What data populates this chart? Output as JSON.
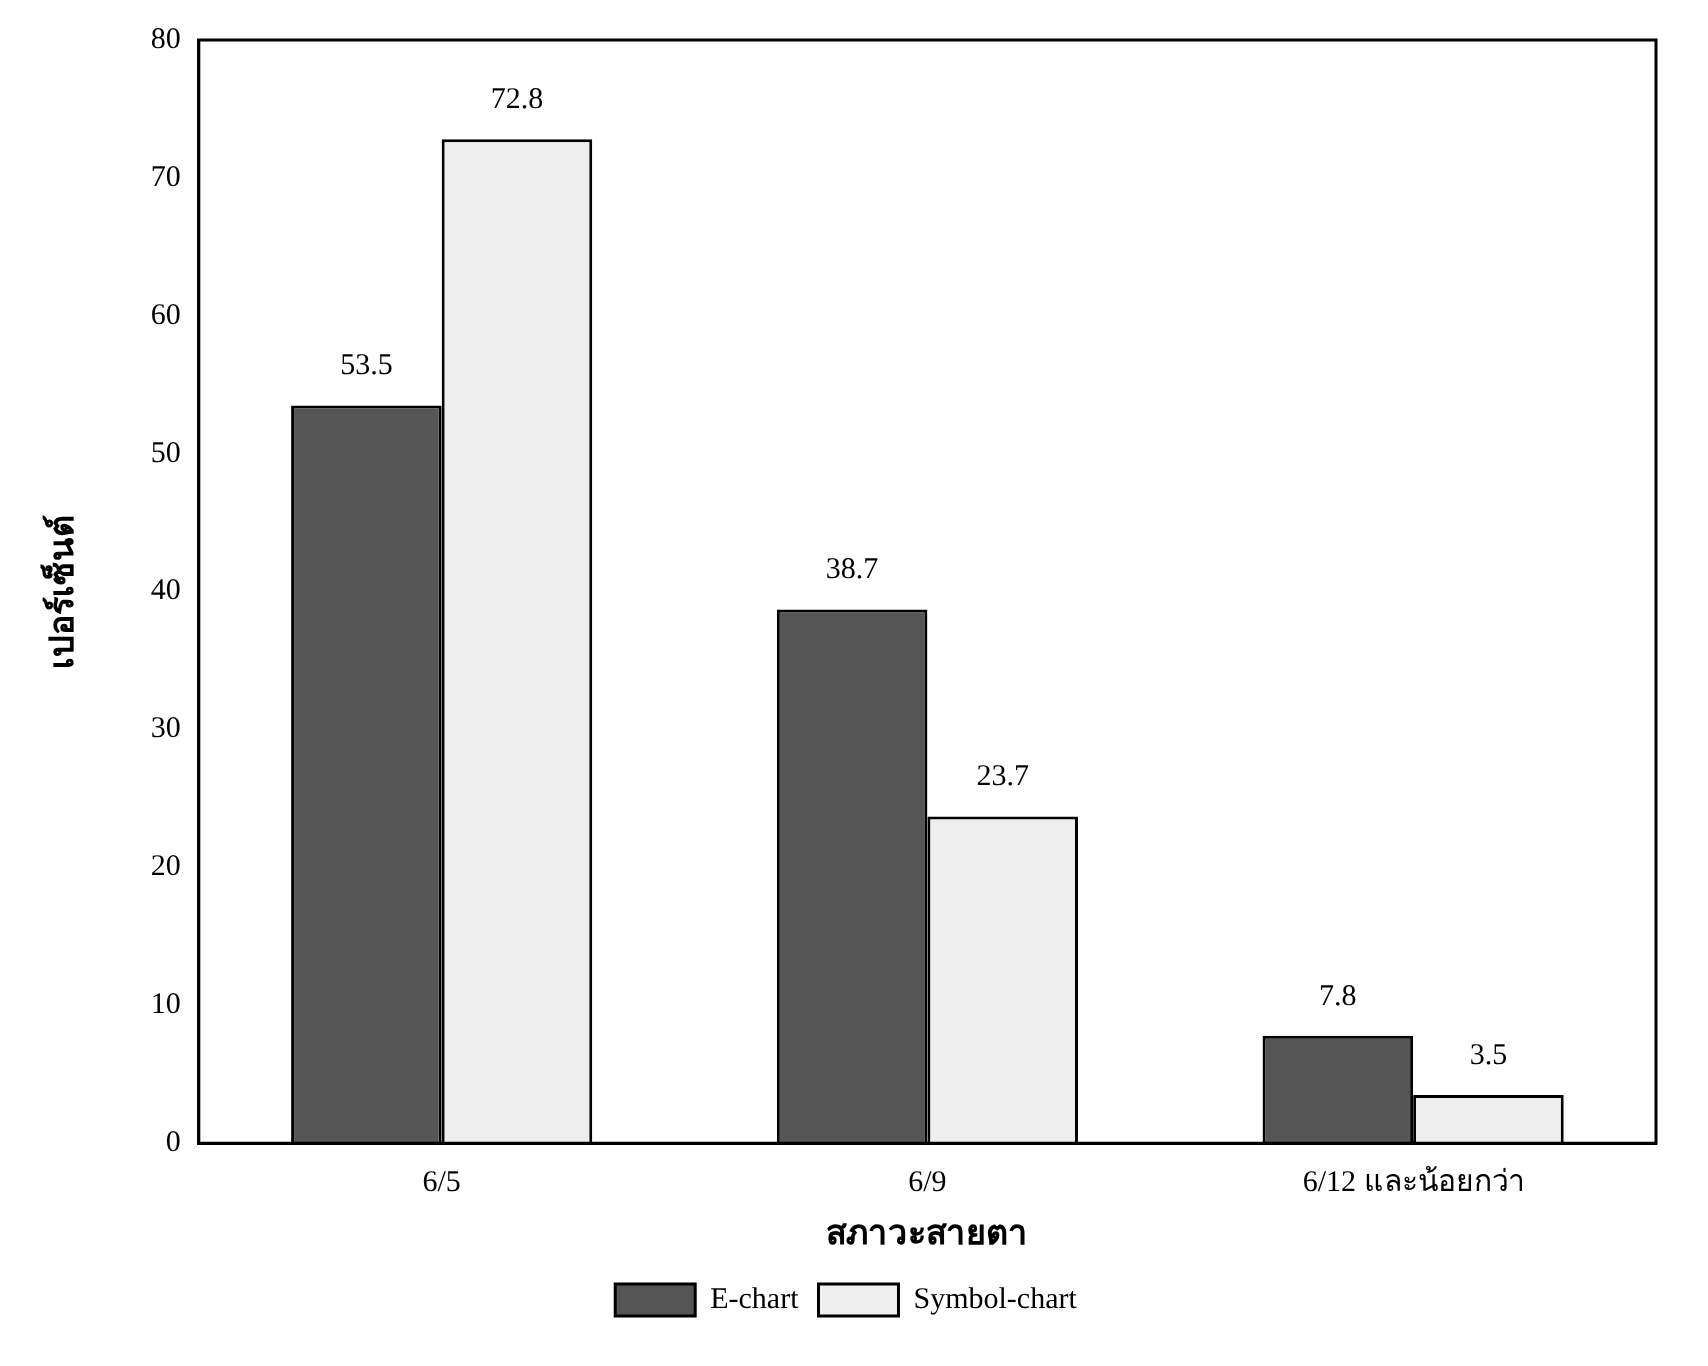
{
  "chart_data": {
    "type": "bar",
    "xlabel": "สภาวะสายตา",
    "ylabel": "เปอร์เซ็นต์",
    "categories": [
      "6/5",
      "6/9",
      "6/12 และน้อยกว่า"
    ],
    "series": [
      {
        "name": "E-chart",
        "color": "#555555",
        "values": [
          53.5,
          38.7,
          7.8
        ]
      },
      {
        "name": "Symbol-chart",
        "color": "#eeeeee",
        "values": [
          72.8,
          23.7,
          3.5
        ]
      }
    ],
    "ylim": [
      0,
      80
    ],
    "yticks": [
      0,
      10,
      20,
      30,
      40,
      50,
      60,
      70,
      80
    ],
    "grid": false,
    "legend": "bottom",
    "data_labels": true
  }
}
